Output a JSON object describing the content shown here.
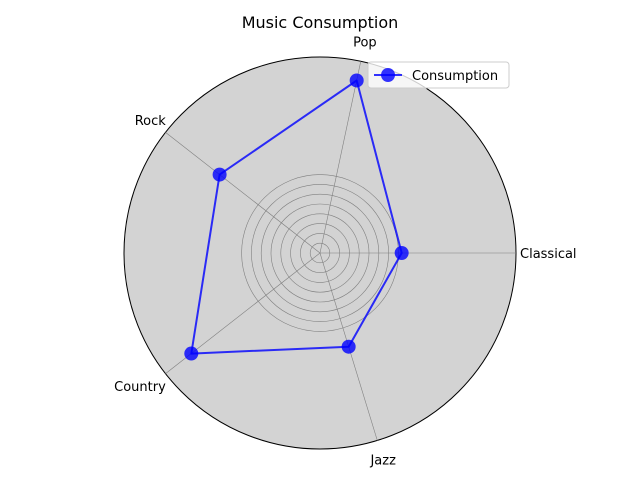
{
  "chart_data": {
    "type": "radar",
    "title": "Music Consumption",
    "categories": [
      "Classical",
      "Pop",
      "Rock",
      "Country",
      "Jazz"
    ],
    "theta_degrees": [
      0,
      78,
      142,
      218,
      287
    ],
    "series": [
      {
        "name": "Consumption",
        "values": [
          25,
          54,
          39,
          50,
          30
        ],
        "color": "#0000ff",
        "marker": "circle"
      }
    ],
    "rlim": [
      0,
      60
    ],
    "rticks": [
      10,
      20,
      30,
      40,
      50,
      60,
      70,
      80
    ],
    "grid": true,
    "legend": "top-right",
    "background_color": "#d3d3d3",
    "grid_color": "#808080"
  }
}
